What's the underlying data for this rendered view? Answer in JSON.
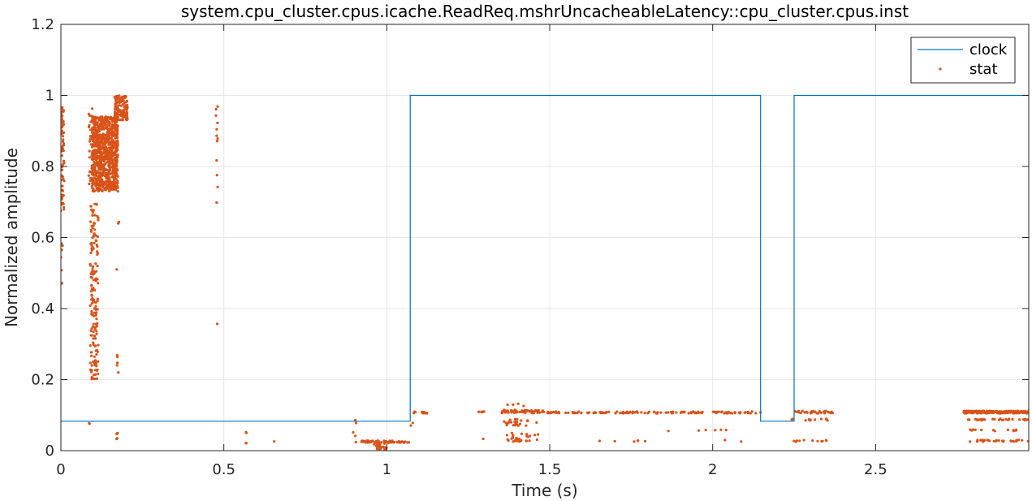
{
  "chart_data": {
    "type": "line",
    "title": "system.cpu_cluster.cpus.icache.ReadReq.mshrUncacheableLatency::cpu_cluster.cpus.inst",
    "xlabel": "Time (s)",
    "ylabel": "Normalized amplitude",
    "xlim": [
      0,
      2.97
    ],
    "ylim": [
      0,
      1.2
    ],
    "xticks": [
      0,
      0.5,
      1,
      1.5,
      2,
      2.5
    ],
    "xtick_labels": [
      "0",
      "0.5",
      "1",
      "1.5",
      "2",
      "2.5"
    ],
    "yticks": [
      0,
      0.2,
      0.4,
      0.6,
      0.8,
      1,
      1.2
    ],
    "ytick_labels": [
      "0",
      "0.2",
      "0.4",
      "0.6",
      "0.8",
      "1",
      "1.2"
    ],
    "grid": true,
    "legend_position": "top-right",
    "colors": {
      "clock": "#0072BD",
      "stat": "#D95319",
      "grid": "#e6e6e6",
      "axes": "#262626"
    },
    "series": [
      {
        "name": "clock",
        "kind": "step-line",
        "x": [
          0,
          1.072,
          1.072,
          2.147,
          2.147,
          2.25,
          2.25,
          2.97
        ],
        "y": [
          0.083,
          0.083,
          1,
          1,
          0.083,
          0.083,
          1,
          1
        ]
      },
      {
        "name": "stat",
        "kind": "scatter",
        "clusters": [
          {
            "x0": 0.0,
            "x1": 0.01,
            "y0": 0.65,
            "y1": 0.97,
            "n": 70
          },
          {
            "x0": 0.0,
            "x1": 0.01,
            "y0": 0.42,
            "y1": 0.6,
            "n": 6
          },
          {
            "x0": 0.085,
            "x1": 0.09,
            "y0": 0.07,
            "y1": 0.08,
            "n": 2
          },
          {
            "x0": 0.085,
            "x1": 0.1,
            "y0": 0.75,
            "y1": 0.97,
            "n": 30
          },
          {
            "x0": 0.09,
            "x1": 0.115,
            "y0": 0.2,
            "y1": 0.7,
            "n": 160
          },
          {
            "x0": 0.095,
            "x1": 0.175,
            "y0": 0.73,
            "y1": 0.94,
            "n": 900
          },
          {
            "x0": 0.165,
            "x1": 0.205,
            "y0": 0.93,
            "y1": 1.0,
            "n": 130
          },
          {
            "x0": 0.17,
            "x1": 0.18,
            "y0": 0.03,
            "y1": 0.05,
            "n": 5
          },
          {
            "x0": 0.17,
            "x1": 0.18,
            "y0": 0.18,
            "y1": 0.27,
            "n": 5
          },
          {
            "x0": 0.17,
            "x1": 0.18,
            "y0": 0.5,
            "y1": 0.65,
            "n": 3
          },
          {
            "x0": 0.475,
            "x1": 0.482,
            "y0": 0.68,
            "y1": 0.97,
            "n": 12
          },
          {
            "x0": 0.475,
            "x1": 0.48,
            "y0": 0.35,
            "y1": 0.36,
            "n": 1
          },
          {
            "x0": 0.56,
            "x1": 0.57,
            "y0": 0.02,
            "y1": 0.065,
            "n": 4
          },
          {
            "x0": 0.65,
            "x1": 0.66,
            "y0": 0.025,
            "y1": 0.03,
            "n": 1
          },
          {
            "x0": 0.895,
            "x1": 0.91,
            "y0": 0.02,
            "y1": 0.09,
            "n": 5
          },
          {
            "x0": 0.92,
            "x1": 1.07,
            "y0": 0.022,
            "y1": 0.028,
            "n": 60
          },
          {
            "x0": 0.96,
            "x1": 1.0,
            "y0": 0.0,
            "y1": 0.02,
            "n": 25
          },
          {
            "x0": 1.07,
            "x1": 1.13,
            "y0": 0.105,
            "y1": 0.11,
            "n": 10
          },
          {
            "x0": 1.07,
            "x1": 1.09,
            "y0": 0.07,
            "y1": 0.08,
            "n": 2
          },
          {
            "x0": 1.28,
            "x1": 1.3,
            "y0": 0.105,
            "y1": 0.11,
            "n": 6
          },
          {
            "x0": 1.29,
            "x1": 1.3,
            "y0": 0.03,
            "y1": 0.035,
            "n": 1
          },
          {
            "x0": 1.35,
            "x1": 1.48,
            "y0": 0.105,
            "y1": 0.115,
            "n": 60
          },
          {
            "x0": 1.36,
            "x1": 1.47,
            "y0": 0.07,
            "y1": 0.09,
            "n": 25
          },
          {
            "x0": 1.36,
            "x1": 1.47,
            "y0": 0.025,
            "y1": 0.05,
            "n": 30
          },
          {
            "x0": 1.37,
            "x1": 1.47,
            "y0": 0.125,
            "y1": 0.14,
            "n": 4
          },
          {
            "x0": 1.48,
            "x1": 2.15,
            "y0": 0.105,
            "y1": 0.11,
            "n": 140
          },
          {
            "x0": 1.5,
            "x1": 2.15,
            "y0": 0.025,
            "y1": 0.03,
            "n": 8
          },
          {
            "x0": 1.6,
            "x1": 2.1,
            "y0": 0.055,
            "y1": 0.06,
            "n": 6
          },
          {
            "x0": 2.25,
            "x1": 2.37,
            "y0": 0.105,
            "y1": 0.112,
            "n": 35
          },
          {
            "x0": 2.24,
            "x1": 2.36,
            "y0": 0.085,
            "y1": 0.09,
            "n": 12
          },
          {
            "x0": 2.24,
            "x1": 2.36,
            "y0": 0.025,
            "y1": 0.03,
            "n": 12
          },
          {
            "x0": 2.77,
            "x1": 2.97,
            "y0": 0.105,
            "y1": 0.112,
            "n": 220
          },
          {
            "x0": 2.78,
            "x1": 2.97,
            "y0": 0.085,
            "y1": 0.09,
            "n": 30
          },
          {
            "x0": 2.79,
            "x1": 2.97,
            "y0": 0.055,
            "y1": 0.06,
            "n": 12
          },
          {
            "x0": 2.78,
            "x1": 2.97,
            "y0": 0.025,
            "y1": 0.03,
            "n": 30
          }
        ]
      }
    ]
  }
}
